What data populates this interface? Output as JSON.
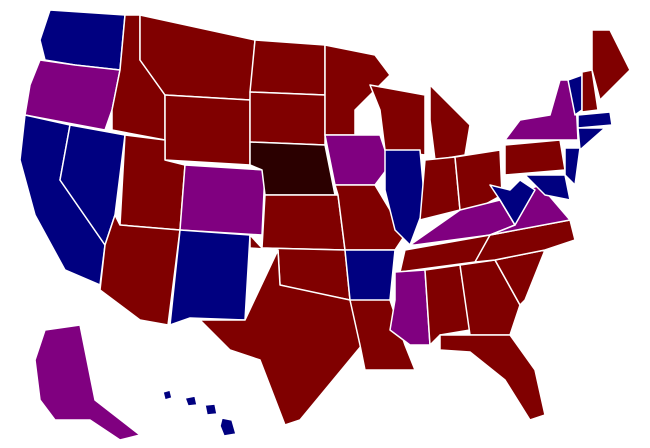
{
  "colors": [
    "#800000",
    "#000080",
    "#800080",
    "#2b0000"
  ]
}
